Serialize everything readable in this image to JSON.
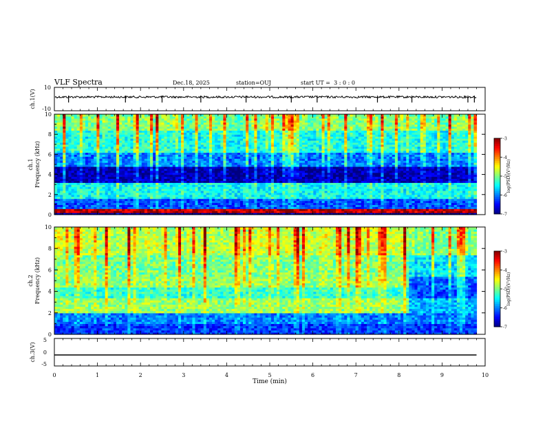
{
  "header": {
    "title": "VLF Spectra",
    "date": "Dec.18, 2025",
    "station": "station=OUJ",
    "start": "start UT =  3 : 0 : 0"
  },
  "chart_data": [
    {
      "type": "line",
      "name": "ch1-waveform",
      "ylabel": "ch.1(V)",
      "ylim": [
        -10,
        10
      ],
      "yticks": [
        "10",
        "-10"
      ],
      "baseline": 0,
      "spikes_min": [
        0.33,
        1.65,
        2.5,
        3.4,
        4.45,
        5.5,
        6.1,
        7.5,
        8.3,
        9.6,
        9.75
      ]
    },
    {
      "type": "heatmap",
      "name": "ch1-spectrogram",
      "ylabel": "ch.1",
      "ylabel2": "Frequency (kHz)",
      "ylim": [
        0,
        10
      ],
      "yticks": [
        "0",
        "2",
        "4",
        "6",
        "8",
        "10"
      ],
      "colorbar": {
        "label": "log(PSD)(V²/Hz)",
        "range": [
          -7,
          -3
        ],
        "ticks": [
          "-3",
          "-4",
          "-5",
          "-6",
          "-7"
        ]
      },
      "bands_khz": [
        {
          "from": 0.0,
          "to": 0.3,
          "level": -7.0
        },
        {
          "from": 0.3,
          "to": 0.6,
          "level": -3.3
        },
        {
          "from": 0.6,
          "to": 1.6,
          "level": -6.2
        },
        {
          "from": 1.6,
          "to": 3.2,
          "level": -5.5
        },
        {
          "from": 3.2,
          "to": 4.8,
          "level": -6.8
        },
        {
          "from": 4.8,
          "to": 6.2,
          "level": -6.0
        },
        {
          "from": 6.2,
          "to": 8.5,
          "level": -5.4
        },
        {
          "from": 8.5,
          "to": 10.0,
          "level": -5.0
        }
      ]
    },
    {
      "type": "heatmap",
      "name": "ch2-spectrogram",
      "ylabel": "ch.2",
      "ylabel2": "Frequency (kHz)",
      "ylim": [
        0,
        10
      ],
      "yticks": [
        "0",
        "2",
        "4",
        "6",
        "8",
        "10"
      ],
      "colorbar": {
        "label": "log(PSD)(V²/Hz)",
        "range": [
          -7,
          -3
        ],
        "ticks": [
          "-3",
          "-4",
          "-5",
          "-6",
          "-7"
        ]
      },
      "change_min": 8.25,
      "bands_khz": [
        {
          "from": 0.0,
          "to": 1.0,
          "level": -6.3,
          "late": -6.3
        },
        {
          "from": 1.0,
          "to": 2.0,
          "level": -6.0,
          "late": -6.0
        },
        {
          "from": 2.0,
          "to": 3.5,
          "level": -4.9,
          "late": -5.8
        },
        {
          "from": 3.5,
          "to": 4.5,
          "level": -5.3,
          "late": -6.2
        },
        {
          "from": 4.5,
          "to": 5.5,
          "level": -4.9,
          "late": -6.1
        },
        {
          "from": 5.5,
          "to": 7.5,
          "level": -5.0,
          "late": -5.6
        },
        {
          "from": 7.5,
          "to": 10.0,
          "level": -4.7,
          "late": -5.0
        }
      ]
    },
    {
      "type": "line",
      "name": "ch3-waveform",
      "ylabel": "ch.3(V)",
      "ylim": [
        -5,
        5
      ],
      "yticks": [
        "5",
        "0",
        "-5"
      ],
      "baseline": -1
    }
  ],
  "xaxis": {
    "label": "Time (min)",
    "range": [
      0,
      10
    ],
    "ticks": [
      "0",
      "1",
      "2",
      "3",
      "4",
      "5",
      "6",
      "7",
      "8",
      "9",
      "10"
    ],
    "data_end_min": 9.8
  }
}
